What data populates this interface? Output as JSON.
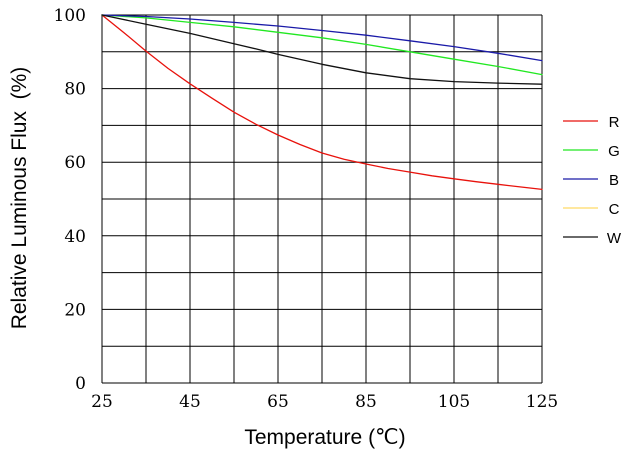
{
  "chart_data": {
    "type": "line",
    "xlabel": "Temperature (℃)",
    "ylabel": "Relative Luminous Flux  (%)",
    "xlim": [
      25,
      125
    ],
    "ylim": [
      0,
      100
    ],
    "x_ticks": [
      25,
      45,
      65,
      85,
      105,
      125
    ],
    "y_ticks": [
      0,
      20,
      40,
      60,
      80,
      100
    ],
    "x_ticks_labels": [
      "25",
      "45",
      "65",
      "85",
      "105",
      "125"
    ],
    "y_ticks_labels": [
      "0",
      "20",
      "40",
      "60",
      "80",
      "100"
    ],
    "grid": true,
    "legend_position": "right",
    "series": [
      {
        "name": "R",
        "color": "#e8120c",
        "x": [
          25,
          30,
          35,
          40,
          45,
          50,
          55,
          60,
          65,
          70,
          75,
          80,
          85,
          90,
          95,
          100,
          105,
          110,
          115,
          120,
          125
        ],
        "y": [
          100,
          95.2,
          90.2,
          85.5,
          81.3,
          77.4,
          73.6,
          70.3,
          67.4,
          64.8,
          62.5,
          60.8,
          59.5,
          58.3,
          57.3,
          56.3,
          55.5,
          54.7,
          54.0,
          53.3,
          52.6
        ]
      },
      {
        "name": "G",
        "color": "#21e821",
        "x": [
          25,
          35,
          45,
          55,
          65,
          75,
          85,
          95,
          105,
          115,
          125
        ],
        "y": [
          100,
          99.2,
          98.0,
          96.8,
          95.3,
          93.8,
          92.0,
          90.0,
          88.0,
          86.0,
          83.8
        ]
      },
      {
        "name": "B",
        "color": "#1a1aa8",
        "x": [
          25,
          35,
          45,
          55,
          65,
          75,
          85,
          95,
          105,
          115,
          125
        ],
        "y": [
          100,
          99.6,
          98.9,
          98.0,
          97.0,
          95.8,
          94.5,
          93.0,
          91.4,
          89.6,
          87.6
        ]
      },
      {
        "name": "C",
        "color": "#ffd966",
        "x": [],
        "y": []
      },
      {
        "name": "W",
        "color": "#111111",
        "x": [
          25,
          35,
          45,
          55,
          60,
          65,
          75,
          85,
          95,
          105,
          115,
          125
        ],
        "y": [
          100,
          97.5,
          95.0,
          92.2,
          90.8,
          89.3,
          86.6,
          84.3,
          82.7,
          81.9,
          81.5,
          81.2
        ]
      }
    ]
  }
}
